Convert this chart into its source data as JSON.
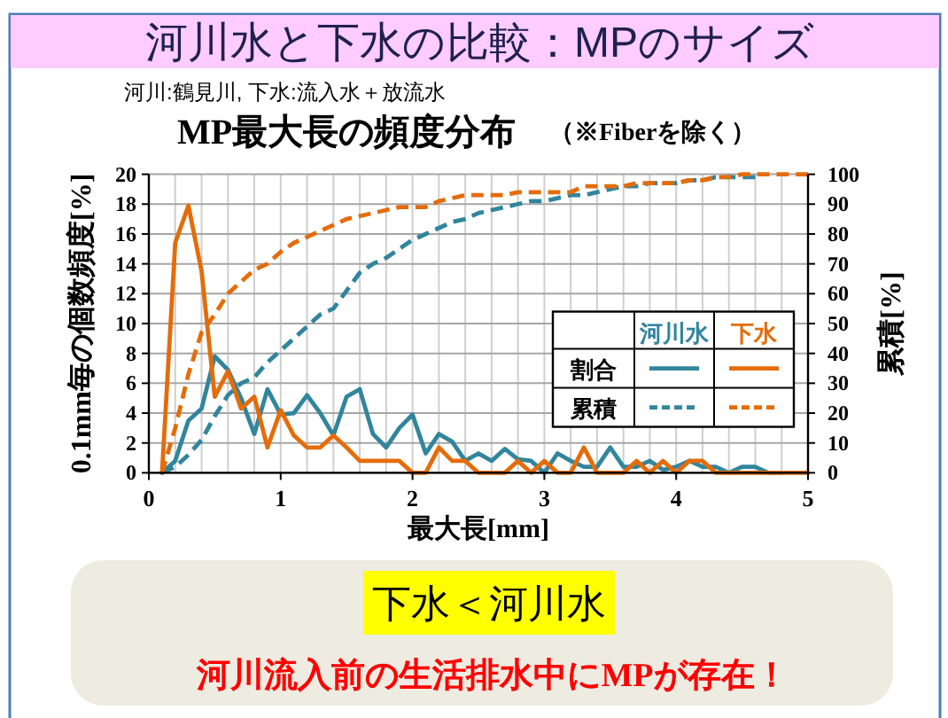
{
  "chart_data": {
    "type": "line",
    "title": "河川水と下水の比較：MPのサイズ",
    "subtitle": "河川:鶴見川, 下水:流入水＋放流水",
    "xlabel": "最大長[mm]",
    "ylabel": "0.1mm毎の個数頻度[%]",
    "y2label": "累積[%]",
    "annotations": [
      "MP最大長の頻度分布",
      "（※Fiberを除く）",
      "割合",
      "累積",
      "下水＜河川水",
      "河川流入前の生活排水中にMPが存在！"
    ],
    "x": [
      0.1,
      0.2,
      0.3,
      0.4,
      0.5,
      0.6,
      0.7,
      0.8,
      0.9,
      1.0,
      1.1,
      1.2,
      1.3,
      1.4,
      1.5,
      1.6,
      1.7,
      1.8,
      1.9,
      2.0,
      2.1,
      2.2,
      2.3,
      2.4,
      2.5,
      2.6,
      2.7,
      2.8,
      2.9,
      3.0,
      3.1,
      3.2,
      3.3,
      3.4,
      3.5,
      3.6,
      3.7,
      3.8,
      3.9,
      4.0,
      4.1,
      4.2,
      4.3,
      4.4,
      4.5,
      4.6,
      4.7,
      4.8,
      4.9,
      5.0
    ],
    "series": [
      {
        "name": "河川水",
        "color": "#31859c",
        "line_style": "solid",
        "values": [
          0,
          0.8,
          3.5,
          4.3,
          7.8,
          6.9,
          5.0,
          2.6,
          5.6,
          3.9,
          4.0,
          5.2,
          4.0,
          2.5,
          5.1,
          5.6,
          2.6,
          1.7,
          3.0,
          3.9,
          1.3,
          2.6,
          2.1,
          0.8,
          1.3,
          0.8,
          1.6,
          0.9,
          0.8,
          0,
          1.3,
          0.8,
          0.4,
          0.4,
          1.7,
          0.4,
          0.4,
          0.8,
          0.2,
          0.4,
          0.8,
          0.4,
          0.4,
          0,
          0.4,
          0.4,
          0,
          0,
          null,
          null
        ]
      },
      {
        "name": "下水",
        "color": "#e46c0a",
        "line_style": "solid",
        "values": [
          0,
          15.4,
          17.9,
          13.5,
          5.1,
          6.8,
          4.3,
          5.1,
          1.7,
          4.2,
          2.5,
          1.7,
          1.7,
          2.5,
          1.7,
          0.8,
          0.8,
          0.8,
          0.8,
          0,
          0,
          1.7,
          0.8,
          0.8,
          0,
          0,
          0,
          0.8,
          0,
          0.8,
          0,
          0,
          1.7,
          0,
          0,
          0,
          0.8,
          0,
          0.8,
          0,
          0.8,
          0.8,
          0,
          0,
          0,
          0,
          0,
          0,
          0,
          0
        ]
      },
      {
        "color": "#31859c",
        "line_style": "dashed",
        "axis": "y2",
        "values": [
          0,
          2,
          6,
          11,
          19,
          26,
          30,
          32,
          37,
          41,
          45,
          49,
          53,
          55,
          61,
          67,
          70,
          72,
          75,
          78,
          80,
          82,
          84,
          85,
          87,
          88,
          89,
          90,
          91,
          91,
          92,
          93,
          93,
          94,
          95,
          96,
          96,
          97,
          97,
          97,
          98,
          98,
          99,
          99,
          99,
          99,
          null,
          null,
          null,
          null
        ]
      },
      {
        "color": "#e46c0a",
        "line_style": "dashed",
        "axis": "y2",
        "values": [
          0,
          15,
          33,
          47,
          53,
          60,
          64,
          68,
          70,
          74,
          77,
          79,
          81,
          83,
          85,
          86,
          87,
          88,
          89,
          89,
          89,
          91,
          92,
          93,
          93,
          93,
          93,
          94,
          94,
          94,
          94,
          94,
          96,
          96,
          96,
          96,
          97,
          97,
          97,
          97,
          98,
          98,
          99,
          99,
          100,
          100,
          100,
          100,
          100,
          100
        ]
      }
    ],
    "xlim": [
      0,
      5
    ],
    "xticks": [
      0,
      {
        "value": 0.2,
        "label": null
      },
      {
        "value": 0.4,
        "label": null
      },
      {
        "value": 0.6,
        "label": null
      },
      {
        "value": 0.8,
        "label": null
      },
      1,
      {
        "value": 1.2,
        "label": null
      },
      {
        "value": 1.4,
        "label": null
      },
      {
        "value": 1.6,
        "label": null
      },
      {
        "value": 1.8,
        "label": null
      },
      2,
      {
        "value": 2.2,
        "label": null
      },
      {
        "value": 2.4,
        "label": null
      },
      {
        "value": 2.6,
        "label": null
      },
      {
        "value": 2.8,
        "label": null
      },
      3,
      {
        "value": 3.2,
        "label": null
      },
      {
        "value": 3.4,
        "label": null
      },
      {
        "value": 3.6,
        "label": null
      },
      {
        "value": 3.8,
        "label": null
      },
      4,
      {
        "value": 4.2,
        "label": null
      },
      {
        "value": 4.4,
        "label": null
      },
      {
        "value": 4.6,
        "label": null
      },
      {
        "value": 4.8,
        "label": null
      },
      5
    ],
    "ylim": [
      0,
      20
    ],
    "yticks": [
      0,
      2,
      4,
      6,
      8,
      10,
      12,
      14,
      16,
      18,
      20
    ],
    "y2lim": [
      0,
      100
    ],
    "y2ticks": [
      0,
      10,
      20,
      30,
      40,
      50,
      60,
      70,
      80,
      90,
      100
    ],
    "grid": true,
    "legend": "right"
  }
}
